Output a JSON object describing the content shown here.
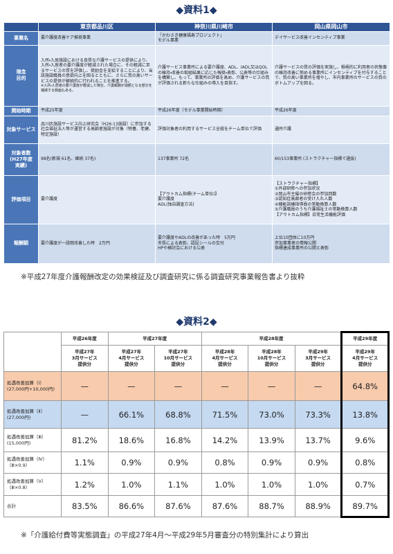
{
  "doc1": {
    "title": "◆資料1◆",
    "header": [
      "東京都品川区",
      "神奈川県川崎市",
      "岡山県岡山市"
    ],
    "rows": [
      {
        "label": [
          "事業名"
        ],
        "cells": [
          [
            "要介護度改善ケア推奨事業"
          ],
          [
            "「かわさき健康福寿プロジェクト」",
            "モデル事業"
          ],
          [
            "デイサービス改善インセンティブ事業"
          ]
        ]
      },
      {
        "label": [
          "理念",
          "目的"
        ],
        "cells": [
          [
            "入所・入居施設における良質な介護サービスの提供により、入所・入居者の要介護度が軽減された場合に、その軽減に至るサービスの質を評価し、奨励金を支給することにより、当該施設職員の意欲向上を図るとともに、さらに質の高いサービスの提供が継続的に行われることを推進する。",
            "※入所・入居者の要介護度が軽減した場合、介護報酬が減額となる部分を補填する側面もある。"
          ],
          [
            "介護サービス事業所による要介護度、ADL、IADL又はQOLの維持・改善の取組結果に応じた報奨・表彰、公表等の仕組みを構築し、もって、事業所の評価を高め、介護サービスの質が評価される新たな仕組みの導入を目指す。"
          ],
          [
            "介護サービスの質の評価を実施し、積極的に利用者の状態像の維持改善に努める事業所にインセンティブを付与することで、質の高い事業所を増やし、市内事業所のサービスの質のボトムアップを図る。"
          ]
        ]
      },
      {
        "label": [
          "開始時期"
        ],
        "cells": [
          [
            "平成25年度"
          ],
          [
            "平成26年度（モデル事業開始時期）"
          ],
          [
            "平成26年度"
          ]
        ]
      },
      {
        "label": [
          "対象サービス"
        ],
        "cells": [
          [
            "品川区施設サービス向上研究会（H26:13施設）に参加する社会福祉法人等が運営する高齢者施設が対象（特養、老健、特定施設）"
          ],
          [
            "評価対象者の利用するサービス全般をチーム単位で評価"
          ],
          [
            "通所介護"
          ]
        ]
      },
      {
        "label": [
          "対象者数",
          "(H27年度",
          "実績)"
        ],
        "cells": [
          [
            "98名(新規 61名、継続 37名)"
          ],
          [
            "137事業所 72名"
          ],
          [
            "60/153事業所 (ストラクチャー指標で選抜)"
          ]
        ]
      },
      {
        "label": [
          "評価項目"
        ],
        "cells": [
          [
            "要介護度"
          ],
          [
            "【アウトカム指標(チーム単位)】",
            "要介護度",
            "ADL(独自調査方法)"
          ],
          [
            "【ストラクチャー指標】",
            "①外部研修への参加状況",
            "②岡山市主催の研修会の参加回数",
            "③認知症高齢者の受け入れ人数",
            "④機能訓練指導員の常勤換算人数",
            "⑤介護職員のうち介護福祉士の常勤換算人数",
            "【アウトカム指標】日常生活機能評価"
          ]
        ]
      },
      {
        "label": [
          "報酬額"
        ],
        "cells": [
          [
            "要介護度が一段階改善した時　2万円"
          ],
          [
            "要介護度やADLの改善があった時　5万円",
            "市長による表彰、認証シールの交付",
            "HPや検討会における公表"
          ],
          [
            "上位10団体に10万円",
            "参加事業者の情報公開",
            "指標達成事業所の公開と表彰"
          ]
        ]
      }
    ],
    "note": "※平成27年度介護報酬改定の効果検証及び調査研究に係る調査研究事業報告書より抜粋"
  },
  "doc2": {
    "title": "◆資料2◆",
    "columns": [
      {
        "year": "平成26年度",
        "periods": [
          [
            "平成27年",
            "3月サービス",
            "提供分"
          ]
        ]
      },
      {
        "year": "平成27年度",
        "periods": [
          [
            "平成27年",
            "4月サービス",
            "提供分"
          ],
          [
            "平成27年",
            "10月サービス",
            "提供分"
          ]
        ]
      },
      {
        "year": "平成28年度",
        "periods": [
          [
            "平成28年",
            "4月サービス",
            "提供分"
          ],
          [
            "平成28年",
            "10月サービス",
            "提供分"
          ],
          [
            "平成29年",
            "3月サービス",
            "提供分"
          ]
        ]
      },
      {
        "year": "平成29年度",
        "periods": [
          [
            "平成29年",
            "4月サービス",
            "提供分"
          ]
        ]
      }
    ],
    "rows": [
      {
        "label": [
          "処遇改善加算（Ⅰ）",
          "(27,000円+10,000円)"
        ],
        "values": [
          "—",
          "—",
          "—",
          "—",
          "—",
          "—",
          "64.8%"
        ]
      },
      {
        "label": [
          "処遇改善加算（Ⅱ）",
          "(27,000円)"
        ],
        "values": [
          "—",
          "66.1%",
          "68.8%",
          "71.5%",
          "73.0%",
          "73.3%",
          "13.8%"
        ]
      },
      {
        "label": [
          "処遇改善加算（Ⅲ）",
          "(15,000円)"
        ],
        "values": [
          "81.2%",
          "18.6%",
          "16.8%",
          "14.2%",
          "13.9%",
          "13.7%",
          "9.6%"
        ]
      },
      {
        "label": [
          "処遇改善加算（Ⅳ）",
          "（Ⅲ×0.9）"
        ],
        "values": [
          "1.1%",
          "0.9%",
          "0.9%",
          "0.8%",
          "0.9%",
          "0.9%",
          "0.8%"
        ]
      },
      {
        "label": [
          "処遇改善加算（Ⅴ）",
          "（Ⅲ×0.8）"
        ],
        "values": [
          "1.2%",
          "1.0%",
          "1.1%",
          "1.0%",
          "1.0%",
          "1.0%",
          "0.7%"
        ]
      },
      {
        "label": [
          "合計"
        ],
        "values": [
          "83.5%",
          "86.6%",
          "87.6%",
          "87.6%",
          "88.7%",
          "88.9%",
          "89.7%"
        ]
      }
    ],
    "note": "※「介護給付費等実態調査」の平成27年4月～平成29年5月審査分の特別集計により算出"
  }
}
